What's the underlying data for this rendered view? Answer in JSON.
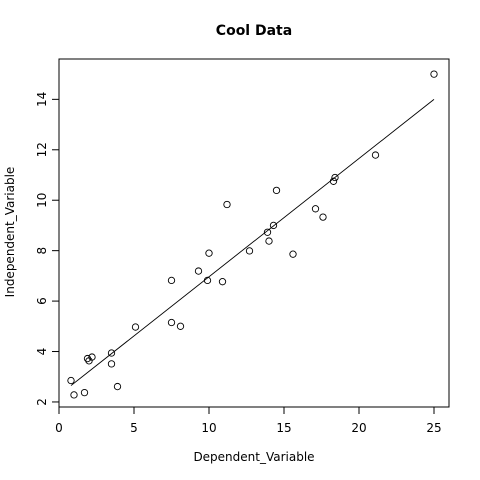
{
  "chart_data": {
    "type": "scatter",
    "title": "Cool Data",
    "xlabel": "Dependent_Variable",
    "ylabel": "Independent_Variable",
    "xlim": [
      0,
      26
    ],
    "ylim": [
      1.8,
      15.6
    ],
    "x_ticks": [
      0,
      5,
      10,
      15,
      20,
      25
    ],
    "y_ticks": [
      2,
      4,
      6,
      8,
      10,
      12,
      14
    ],
    "grid": false,
    "series": [
      {
        "points": [
          {
            "x": 0.8,
            "y": 2.85
          },
          {
            "x": 1.0,
            "y": 2.28
          },
          {
            "x": 1.7,
            "y": 2.37
          },
          {
            "x": 1.9,
            "y": 3.72
          },
          {
            "x": 2.0,
            "y": 3.63
          },
          {
            "x": 2.2,
            "y": 3.78
          },
          {
            "x": 3.5,
            "y": 3.94
          },
          {
            "x": 3.5,
            "y": 3.51
          },
          {
            "x": 3.9,
            "y": 2.61
          },
          {
            "x": 5.1,
            "y": 4.97
          },
          {
            "x": 7.5,
            "y": 5.15
          },
          {
            "x": 7.5,
            "y": 6.82
          },
          {
            "x": 8.1,
            "y": 5.0
          },
          {
            "x": 9.3,
            "y": 7.19
          },
          {
            "x": 9.9,
            "y": 6.82
          },
          {
            "x": 10.0,
            "y": 7.9
          },
          {
            "x": 10.9,
            "y": 6.77
          },
          {
            "x": 11.2,
            "y": 9.83
          },
          {
            "x": 12.7,
            "y": 7.99
          },
          {
            "x": 13.9,
            "y": 8.73
          },
          {
            "x": 14.0,
            "y": 8.38
          },
          {
            "x": 14.3,
            "y": 9.0
          },
          {
            "x": 14.5,
            "y": 10.39
          },
          {
            "x": 15.6,
            "y": 7.86
          },
          {
            "x": 17.1,
            "y": 9.66
          },
          {
            "x": 17.6,
            "y": 9.33
          },
          {
            "x": 18.3,
            "y": 10.75
          },
          {
            "x": 18.4,
            "y": 10.9
          },
          {
            "x": 21.1,
            "y": 11.79
          },
          {
            "x": 25.0,
            "y": 15.0
          }
        ]
      }
    ],
    "trend_line": {
      "x1": 0.8,
      "y1": 2.65,
      "x2": 25.0,
      "y2": 14.0
    }
  }
}
